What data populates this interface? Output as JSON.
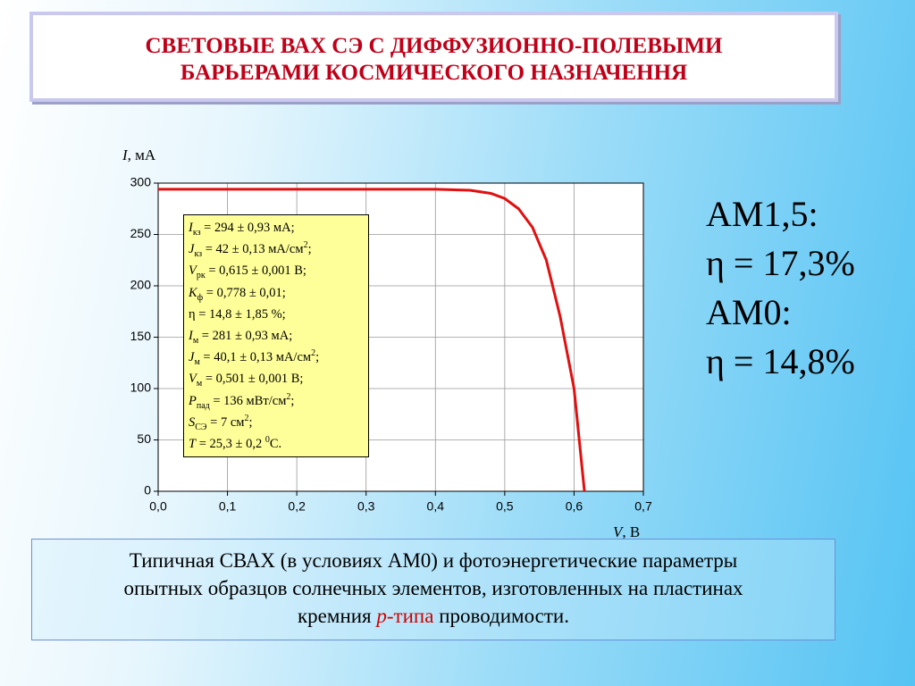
{
  "title": {
    "line1": "СВЕТОВЫЕ ВАХ СЭ С ДИФФУЗИОННО-ПОЛЕВЫМИ",
    "line2": "БАРЬЕРАМИ КОСМИЧЕСКОГО НАЗНАЧЕННЯ"
  },
  "chart_data": {
    "type": "line",
    "y_label": {
      "symbol": "I",
      "unit": ", мА"
    },
    "x_label": {
      "symbol": "V",
      "unit": ", В"
    },
    "x": [
      0,
      0.1,
      0.2,
      0.3,
      0.4,
      0.45,
      0.48,
      0.5,
      0.52,
      0.54,
      0.56,
      0.58,
      0.6,
      0.615
    ],
    "series": [
      {
        "color": "#e01010",
        "values": [
          294,
          294,
          294,
          294,
          294,
          293,
          290,
          285,
          275,
          257,
          225,
          170,
          100,
          0
        ]
      }
    ],
    "xlim": [
      0,
      0.7
    ],
    "xticks": [
      {
        "value": 0,
        "label": "0,0"
      },
      {
        "value": 0.1,
        "label": "0,1"
      },
      {
        "value": 0.2,
        "label": "0,2"
      },
      {
        "value": 0.3,
        "label": "0,3"
      },
      {
        "value": 0.4,
        "label": "0,4"
      },
      {
        "value": 0.5,
        "label": "0,5"
      },
      {
        "value": 0.6,
        "label": "0,6"
      },
      {
        "value": 0.7,
        "label": "0,7"
      }
    ],
    "ylim": [
      0,
      300
    ],
    "yticks": [
      0,
      50,
      100,
      150,
      200,
      250,
      300
    ],
    "grid": true,
    "params": [
      {
        "symbol": "I",
        "sub": "кз",
        "value": " = 294 ± 0,93 мА;"
      },
      {
        "symbol": "J",
        "sub": "кз",
        "value": " = 42 ± 0,13 мА/см",
        "sup": "2",
        "tail": ";"
      },
      {
        "symbol": "V",
        "sub": "рк",
        "value": " = 0,615 ± 0,001 В;"
      },
      {
        "symbol": "K",
        "sub": "ф",
        "value": " = 0,778 ± 0,01;"
      },
      {
        "value": "η = 14,8 ± 1,85 %;"
      },
      {
        "symbol": "I",
        "sub": "м",
        "value": " = 281 ± 0,93 мА;"
      },
      {
        "symbol": "J",
        "sub": "м",
        "value": " = 40,1 ± 0,13 мА/см",
        "sup": "2",
        "tail": ";"
      },
      {
        "symbol": "V",
        "sub": "м",
        "value": " = 0,501 ± 0,001 В;"
      },
      {
        "symbol": "P",
        "sub": "пад",
        "value": " = 136 мВт/см",
        "sup": "2",
        "tail": ";"
      },
      {
        "symbol": "S",
        "sub": "СЭ",
        "value": " = 7 см",
        "sup": "2",
        "tail": ";"
      },
      {
        "symbol": "T",
        "value": " = 25,3 ± 0,2 ",
        "sup": "0",
        "tail": "С."
      }
    ]
  },
  "side": [
    "AM1,5:",
    "η = 17,3%",
    "AM0:",
    "η = 14,8%"
  ],
  "caption": {
    "line1": "Типичная СВАХ (в условиях АМ0) и фотоэнергетические параметры",
    "line2": "опытных образцов солнечных элементов, изготовленных на пластинах",
    "line3": "кремния ",
    "p": "p",
    "ptype": "-типа",
    "end": " проводимости."
  }
}
